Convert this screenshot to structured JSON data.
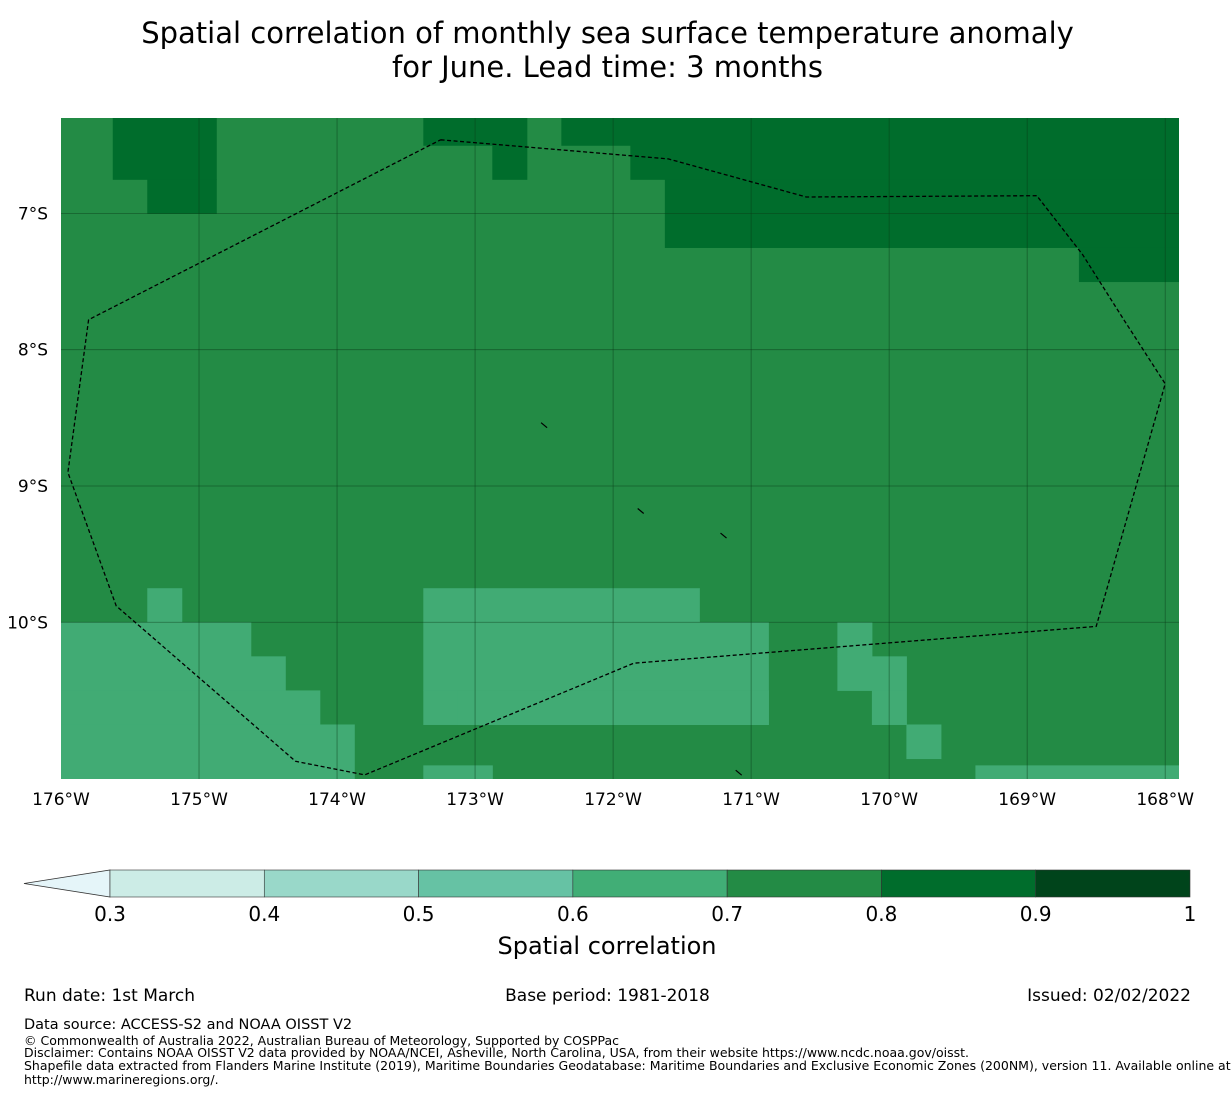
{
  "title": {
    "line1": "Spatial correlation of monthly sea surface temperature anomaly",
    "line2": "for June. Lead time: 3 months"
  },
  "map": {
    "lon_range": [
      -176,
      -167.9
    ],
    "lat_range": [
      -11.15,
      -6.3
    ],
    "lon_ticks": [
      "176°W",
      "175°W",
      "174°W",
      "173°W",
      "172°W",
      "171°W",
      "170°W",
      "169°W",
      "168°W"
    ],
    "lat_ticks": [
      "7°S",
      "8°S",
      "9°S",
      "10°S"
    ],
    "grid_resolution_deg": 0.25,
    "colors": {
      "0.6-0.7": "#41ab74",
      "0.7-0.8": "#238b45",
      "0.8-0.9": "#006d2c"
    },
    "base_level": "0.7-0.8",
    "cells_0.8_0.9": [
      {
        "lon": [
          -175.625,
          -174.875
        ],
        "lat": [
          -6.75,
          -6.3
        ]
      },
      {
        "lon": [
          -175.375,
          -174.875
        ],
        "lat": [
          -7.0,
          -6.75
        ]
      },
      {
        "lon": [
          -173.375,
          -172.625
        ],
        "lat": [
          -6.5,
          -6.3
        ]
      },
      {
        "lon": [
          -172.875,
          -172.625
        ],
        "lat": [
          -6.75,
          -6.5
        ]
      },
      {
        "lon": [
          -172.375,
          -167.9
        ],
        "lat": [
          -6.5,
          -6.3
        ]
      },
      {
        "lon": [
          -171.875,
          -167.9
        ],
        "lat": [
          -6.75,
          -6.5
        ]
      },
      {
        "lon": [
          -171.625,
          -167.9
        ],
        "lat": [
          -7.0,
          -6.75
        ]
      },
      {
        "lon": [
          -171.625,
          -167.9
        ],
        "lat": [
          -7.25,
          -7.0
        ]
      },
      {
        "lon": [
          -168.625,
          -167.9
        ],
        "lat": [
          -7.5,
          -7.25
        ]
      }
    ],
    "cells_0.6_0.7": [
      {
        "lon": [
          -175.375,
          -175.125
        ],
        "lat": [
          -10.0,
          -9.75
        ]
      },
      {
        "lon": [
          -176.0,
          -174.625
        ],
        "lat": [
          -10.25,
          -10.0
        ]
      },
      {
        "lon": [
          -176.0,
          -174.375
        ],
        "lat": [
          -10.5,
          -10.25
        ]
      },
      {
        "lon": [
          -176.0,
          -174.125
        ],
        "lat": [
          -10.75,
          -10.5
        ]
      },
      {
        "lon": [
          -176.0,
          -173.875
        ],
        "lat": [
          -11.15,
          -10.75
        ]
      },
      {
        "lon": [
          -173.375,
          -171.375
        ],
        "lat": [
          -10.0,
          -9.75
        ]
      },
      {
        "lon": [
          -173.375,
          -170.875
        ],
        "lat": [
          -10.5,
          -10.0
        ]
      },
      {
        "lon": [
          -173.375,
          -170.875
        ],
        "lat": [
          -10.75,
          -10.5
        ]
      },
      {
        "lon": [
          -173.125,
          -170.875
        ],
        "lat": [
          -10.75,
          -10.5
        ]
      },
      {
        "lon": [
          -170.375,
          -170.125
        ],
        "lat": [
          -10.25,
          -10.0
        ]
      },
      {
        "lon": [
          -170.375,
          -169.875
        ],
        "lat": [
          -10.5,
          -10.25
        ]
      },
      {
        "lon": [
          -170.125,
          -169.875
        ],
        "lat": [
          -10.75,
          -10.5
        ]
      },
      {
        "lon": [
          -169.875,
          -169.625
        ],
        "lat": [
          -11.0,
          -10.75
        ]
      },
      {
        "lon": [
          -173.375,
          -172.875
        ],
        "lat": [
          -11.15,
          -11.05
        ]
      },
      {
        "lon": [
          -169.375,
          -167.9
        ],
        "lat": [
          -11.15,
          -11.05
        ]
      }
    ],
    "boundary": [
      [
        -173.25,
        -6.46
      ],
      [
        -171.6,
        -6.6
      ],
      [
        -170.6,
        -6.88
      ],
      [
        -168.93,
        -6.87
      ],
      [
        -168.6,
        -7.3
      ],
      [
        -168.3,
        -7.78
      ],
      [
        -168.0,
        -8.25
      ],
      [
        -168.5,
        -10.03
      ],
      [
        -171.85,
        -10.3
      ],
      [
        -173.8,
        -11.12
      ],
      [
        -174.3,
        -11.02
      ],
      [
        -175.6,
        -9.88
      ],
      [
        -175.95,
        -8.9
      ],
      [
        -175.8,
        -7.78
      ],
      [
        -173.25,
        -6.46
      ]
    ],
    "islets": [
      {
        "lon": -172.5,
        "lat": -8.55
      },
      {
        "lon": -171.8,
        "lat": -9.18
      },
      {
        "lon": -171.2,
        "lat": -9.36
      },
      {
        "lon": -171.09,
        "lat": -11.1
      }
    ]
  },
  "colorbar": {
    "label": "Spatial correlation",
    "ticks": [
      "0.3",
      "0.4",
      "0.5",
      "0.6",
      "0.7",
      "0.8",
      "0.9",
      "1"
    ],
    "extend_color": "#e5f5f9",
    "colors": [
      "#ccece6",
      "#99d8c9",
      "#66c2a4",
      "#41ae76",
      "#238b45",
      "#006d2c",
      "#00441b"
    ]
  },
  "footer": {
    "run_date": "Run date: 1st March",
    "base_period": "Base period: 1981-2018",
    "issued": "Issued: 02/02/2022",
    "data_source": "Data source: ACCESS-S2 and NOAA OISST V2",
    "copyright": "© Commonwealth of Australia 2022, Australian Bureau of Meteorology, Supported by COSPPac",
    "disclaimer": "Disclaimer: Contains NOAA OISST V2 data provided by NOAA/NCEI, Asheville, North Carolina, USA, from their website https://www.ncdc.noaa.gov/oisst.",
    "shapefile_line1": "Shapefile data extracted from Flanders Marine Institute (2019), Maritime Boundaries Geodatabase: Maritime Boundaries and Exclusive Economic Zones (200NM), version 11. Available online at",
    "shapefile_line2": "http://www.marineregions.org/."
  }
}
